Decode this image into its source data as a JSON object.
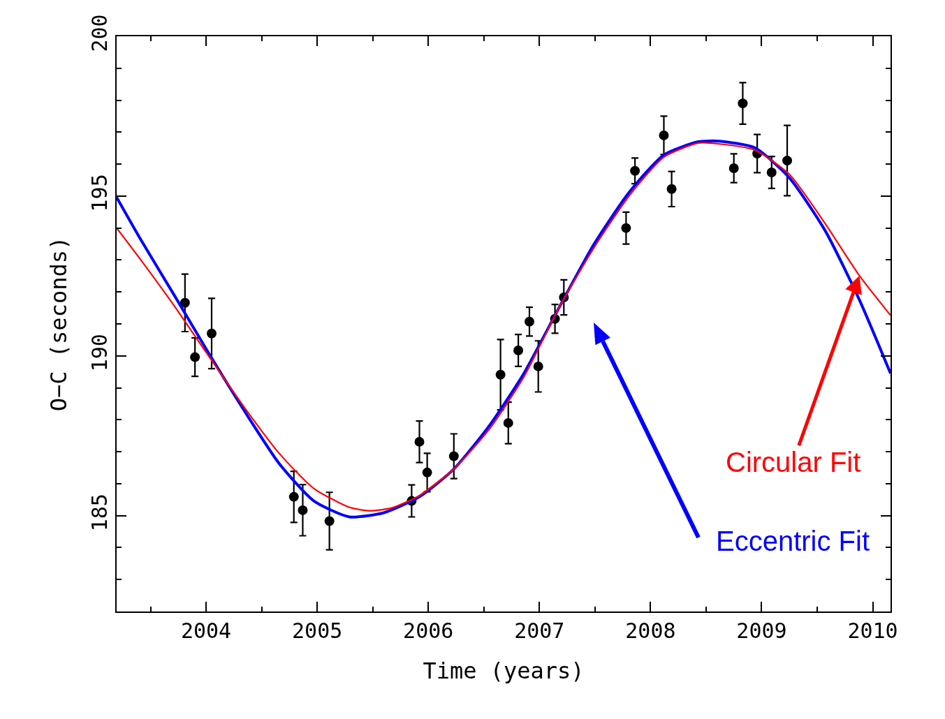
{
  "chart_data": {
    "type": "scatter",
    "xlabel": "Time (years)",
    "ylabel": "O−C (seconds)",
    "xlim": [
      2003.195,
      2010.16
    ],
    "ylim": [
      182,
      200
    ],
    "xticks": [
      2004,
      2005,
      2006,
      2007,
      2008,
      2009,
      2010
    ],
    "yticks": [
      185,
      190,
      195,
      200
    ],
    "grid": false,
    "marker": "circle",
    "series": [
      {
        "color": "#000000",
        "x": [
          2003.81,
          2003.9,
          2004.05,
          2004.79,
          2004.87,
          2005.11,
          2005.85,
          2005.92,
          2005.99,
          2006.23,
          2006.65,
          2006.72,
          2006.81,
          2006.91,
          2006.99,
          2007.14,
          2007.22,
          2007.78,
          2007.86,
          2008.12,
          2008.19,
          2008.75,
          2008.83,
          2008.96,
          2009.09,
          2009.23
        ],
        "values": [
          191.66,
          189.96,
          190.7,
          185.59,
          185.17,
          184.83,
          185.46,
          187.31,
          186.35,
          186.86,
          189.41,
          187.9,
          190.17,
          191.07,
          189.67,
          191.16,
          191.83,
          194.0,
          195.79,
          196.9,
          195.22,
          195.87,
          197.9,
          196.33,
          195.74,
          196.11
        ],
        "errors": [
          0.9,
          0.6,
          1.1,
          0.8,
          0.8,
          0.9,
          0.5,
          0.65,
          0.6,
          0.7,
          1.1,
          0.65,
          0.5,
          0.45,
          0.8,
          0.45,
          0.55,
          0.5,
          0.4,
          0.6,
          0.55,
          0.45,
          0.65,
          0.6,
          0.5,
          1.1
        ]
      },
      {
        "type": "line",
        "color": "#0000ff",
        "marker": "none",
        "line_style": "solid",
        "x": [
          2003.195,
          2003.4,
          2003.72,
          2004.0,
          2004.35,
          2004.66,
          2004.97,
          2005.29,
          2005.6,
          2005.92,
          2006.23,
          2006.55,
          2006.86,
          2007.18,
          2007.49,
          2007.81,
          2008.12,
          2008.43,
          2008.62,
          2008.94,
          2009.25,
          2009.57,
          2009.88,
          2010.16
        ],
        "values": [
          194.96,
          193.71,
          191.86,
          190.22,
          188.25,
          186.62,
          185.46,
          184.96,
          185.09,
          185.59,
          186.46,
          187.82,
          189.45,
          191.53,
          193.49,
          195.13,
          196.29,
          196.7,
          196.72,
          196.51,
          195.57,
          193.93,
          191.75,
          189.45
        ]
      },
      {
        "type": "line",
        "color": "#ff0000",
        "marker": "none",
        "line_style": "solid",
        "x": [
          2003.195,
          2003.4,
          2003.72,
          2004.0,
          2004.35,
          2004.66,
          2004.97,
          2005.29,
          2005.48,
          2005.67,
          2005.92,
          2006.23,
          2006.55,
          2006.86,
          2007.18,
          2007.49,
          2007.81,
          2008.12,
          2008.43,
          2008.65,
          2008.94,
          2009.25,
          2009.57,
          2009.88,
          2010.16
        ],
        "values": [
          194.0,
          193.06,
          191.53,
          190.11,
          188.36,
          186.94,
          185.85,
          185.26,
          185.15,
          185.24,
          185.63,
          186.46,
          187.71,
          189.34,
          191.53,
          193.38,
          195.02,
          196.22,
          196.66,
          196.62,
          196.44,
          195.68,
          194.15,
          192.51,
          191.27
        ]
      }
    ],
    "annotations": [
      {
        "text": "Circular Fit",
        "x": 2009.88,
        "y": 192.51
      },
      "Eccentric Fit"
    ]
  }
}
